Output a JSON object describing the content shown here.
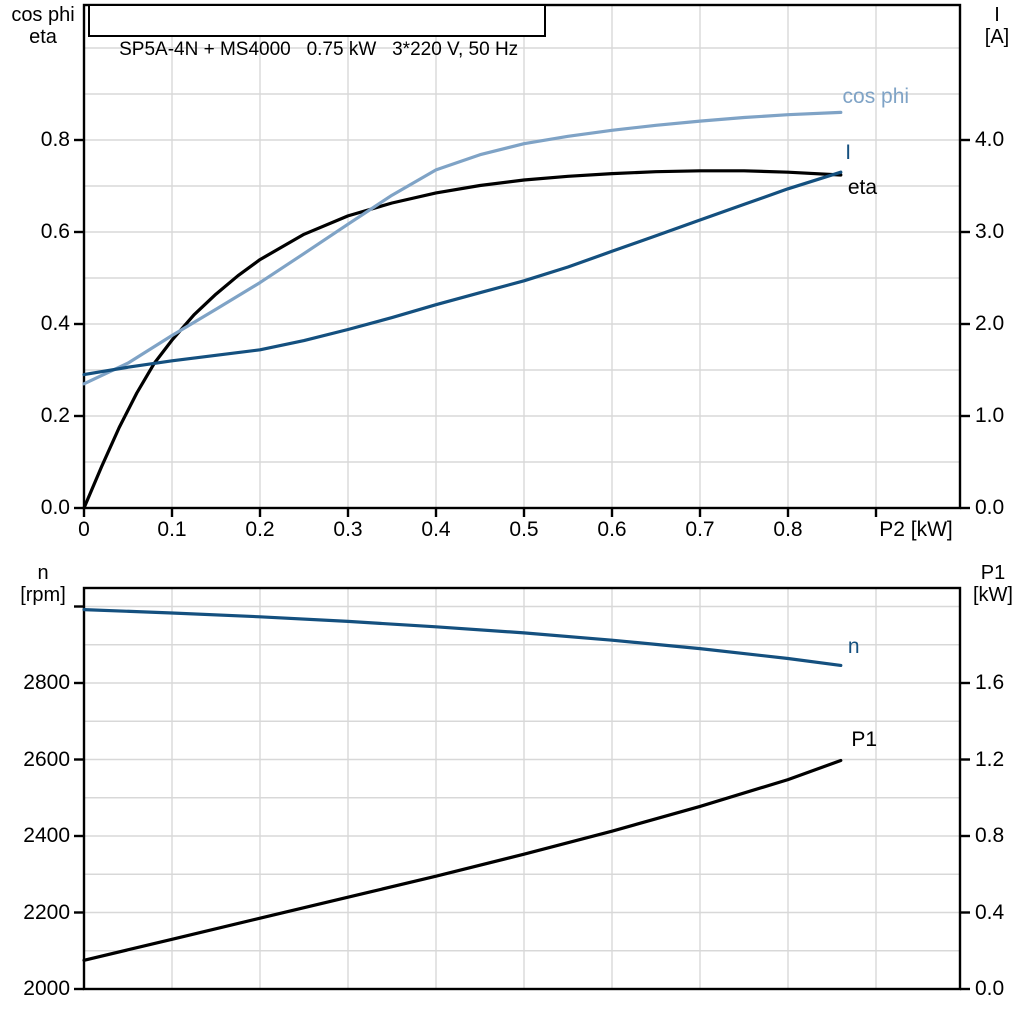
{
  "page": {
    "background": "#ffffff"
  },
  "colors": {
    "black": "#000000",
    "dark_blue": "#14507F",
    "light_blue": "#7FA3C6",
    "grid": "#D8D8D8",
    "axis": "#000000"
  },
  "chart_data": [
    {
      "type": "line",
      "title": "SP5A-4N + MS4000   0.75 kW   3*220 V, 50 Hz",
      "x_axis": {
        "label": "P2 [kW]",
        "range": [
          0,
          1.0
        ],
        "tick_values": [
          0,
          0.1,
          0.2,
          0.3,
          0.4,
          0.5,
          0.6,
          0.7,
          0.8,
          0.9
        ],
        "tick_labels": [
          "0",
          "0.1",
          "0.2",
          "0.3",
          "0.4",
          "0.5",
          "0.6",
          "0.7",
          "0.8",
          ""
        ],
        "grid_values": [
          0.1,
          0.2,
          0.3,
          0.4,
          0.5,
          0.6,
          0.7,
          0.8,
          0.9
        ]
      },
      "left_axis": {
        "title_lines": [
          "cos phi",
          "eta"
        ],
        "range": [
          0,
          1.0
        ],
        "tick_values": [
          0,
          0.2,
          0.4,
          0.6,
          0.8
        ],
        "tick_labels": [
          "0.0",
          "0.2",
          "0.4",
          "0.6",
          "0.8"
        ],
        "grid_values": [
          0.1,
          0.2,
          0.3,
          0.4,
          0.5,
          0.6,
          0.7,
          0.8,
          0.9,
          1.0
        ],
        "extra_tick_values": []
      },
      "right_axis": {
        "title_lines": [
          "I",
          "[A]"
        ],
        "range": [
          0,
          5.0
        ],
        "tick_values": [
          0,
          1,
          2,
          3,
          4
        ],
        "tick_labels": [
          "0.0",
          "1.0",
          "2.0",
          "3.0",
          "4.0"
        ]
      },
      "legend_position": "end-of-curve",
      "grid": true,
      "series": [
        {
          "name": "eta",
          "label": "eta",
          "axis": "left",
          "color_key": "black",
          "label_anchor": [
            0.868,
            0.695
          ],
          "points": [
            [
              0,
              0
            ],
            [
              0.02,
              0.09
            ],
            [
              0.04,
              0.175
            ],
            [
              0.06,
              0.25
            ],
            [
              0.08,
              0.315
            ],
            [
              0.1,
              0.365
            ],
            [
              0.125,
              0.42
            ],
            [
              0.15,
              0.465
            ],
            [
              0.175,
              0.505
            ],
            [
              0.2,
              0.54
            ],
            [
              0.25,
              0.595
            ],
            [
              0.3,
              0.635
            ],
            [
              0.35,
              0.663
            ],
            [
              0.4,
              0.685
            ],
            [
              0.45,
              0.701
            ],
            [
              0.5,
              0.713
            ],
            [
              0.55,
              0.721
            ],
            [
              0.6,
              0.727
            ],
            [
              0.65,
              0.731
            ],
            [
              0.7,
              0.733
            ],
            [
              0.75,
              0.733
            ],
            [
              0.8,
              0.73
            ],
            [
              0.86,
              0.724
            ]
          ]
        },
        {
          "name": "cos_phi",
          "label": "cos phi",
          "axis": "left",
          "color_key": "light_blue",
          "label_anchor": [
            0.862,
            0.893
          ],
          "points": [
            [
              0,
              0.27
            ],
            [
              0.05,
              0.315
            ],
            [
              0.1,
              0.375
            ],
            [
              0.15,
              0.432
            ],
            [
              0.2,
              0.49
            ],
            [
              0.25,
              0.553
            ],
            [
              0.3,
              0.617
            ],
            [
              0.35,
              0.68
            ],
            [
              0.4,
              0.735
            ],
            [
              0.45,
              0.768
            ],
            [
              0.5,
              0.792
            ],
            [
              0.55,
              0.808
            ],
            [
              0.6,
              0.821
            ],
            [
              0.65,
              0.832
            ],
            [
              0.7,
              0.841
            ],
            [
              0.75,
              0.849
            ],
            [
              0.8,
              0.855
            ],
            [
              0.86,
              0.86
            ]
          ]
        },
        {
          "name": "current",
          "label": "I",
          "axis": "right",
          "color_key": "dark_blue",
          "label_anchor": [
            0.865,
            3.86
          ],
          "points": [
            [
              0,
              1.45
            ],
            [
              0.05,
              1.53
            ],
            [
              0.1,
              1.6
            ],
            [
              0.15,
              1.66
            ],
            [
              0.2,
              1.72
            ],
            [
              0.25,
              1.82
            ],
            [
              0.3,
              1.94
            ],
            [
              0.35,
              2.07
            ],
            [
              0.4,
              2.21
            ],
            [
              0.45,
              2.34
            ],
            [
              0.5,
              2.47
            ],
            [
              0.55,
              2.62
            ],
            [
              0.6,
              2.79
            ],
            [
              0.65,
              2.96
            ],
            [
              0.7,
              3.13
            ],
            [
              0.75,
              3.3
            ],
            [
              0.8,
              3.47
            ],
            [
              0.86,
              3.65
            ]
          ]
        }
      ]
    },
    {
      "type": "line",
      "title": "",
      "x_axis": {
        "label": "",
        "range": [
          0,
          1.0
        ],
        "tick_values": [],
        "tick_labels": [],
        "grid_values": [
          0.1,
          0.2,
          0.3,
          0.4,
          0.5,
          0.6,
          0.7,
          0.8,
          0.9
        ]
      },
      "left_axis": {
        "title_lines": [
          "n",
          "[rpm]"
        ],
        "range": [
          2000,
          3050
        ],
        "tick_values": [
          2000,
          2200,
          2400,
          2600,
          2800
        ],
        "tick_labels": [
          "2000",
          "2200",
          "2400",
          "2600",
          "2800"
        ],
        "grid_values": [
          2100,
          2200,
          2300,
          2400,
          2500,
          2600,
          2700,
          2800,
          2900,
          3000
        ],
        "extra_tick_values": [
          3000
        ]
      },
      "right_axis": {
        "title_lines": [
          "P1",
          "[kW]"
        ],
        "range": [
          0,
          2.1
        ],
        "tick_values": [
          0,
          0.4,
          0.8,
          1.2,
          1.6
        ],
        "tick_labels": [
          "0.0",
          "0.4",
          "0.8",
          "1.2",
          "1.6"
        ]
      },
      "legend_position": "end-of-curve",
      "grid": true,
      "series": [
        {
          "name": "speed",
          "label": "n",
          "axis": "left",
          "color_key": "dark_blue",
          "label_anchor": [
            0.868,
            2893
          ],
          "points": [
            [
              0,
              2992
            ],
            [
              0.1,
              2983
            ],
            [
              0.2,
              2973
            ],
            [
              0.3,
              2961
            ],
            [
              0.4,
              2947
            ],
            [
              0.5,
              2931
            ],
            [
              0.6,
              2912
            ],
            [
              0.7,
              2890
            ],
            [
              0.8,
              2864
            ],
            [
              0.86,
              2846
            ]
          ]
        },
        {
          "name": "p1_power",
          "label": "P1",
          "axis": "right",
          "color_key": "black",
          "label_anchor": [
            0.872,
            1.3
          ],
          "points": [
            [
              0,
              0.15
            ],
            [
              0.1,
              0.26
            ],
            [
              0.2,
              0.37
            ],
            [
              0.3,
              0.48
            ],
            [
              0.4,
              0.59
            ],
            [
              0.5,
              0.705
            ],
            [
              0.6,
              0.825
            ],
            [
              0.7,
              0.955
            ],
            [
              0.8,
              1.095
            ],
            [
              0.86,
              1.195
            ]
          ]
        }
      ]
    }
  ]
}
